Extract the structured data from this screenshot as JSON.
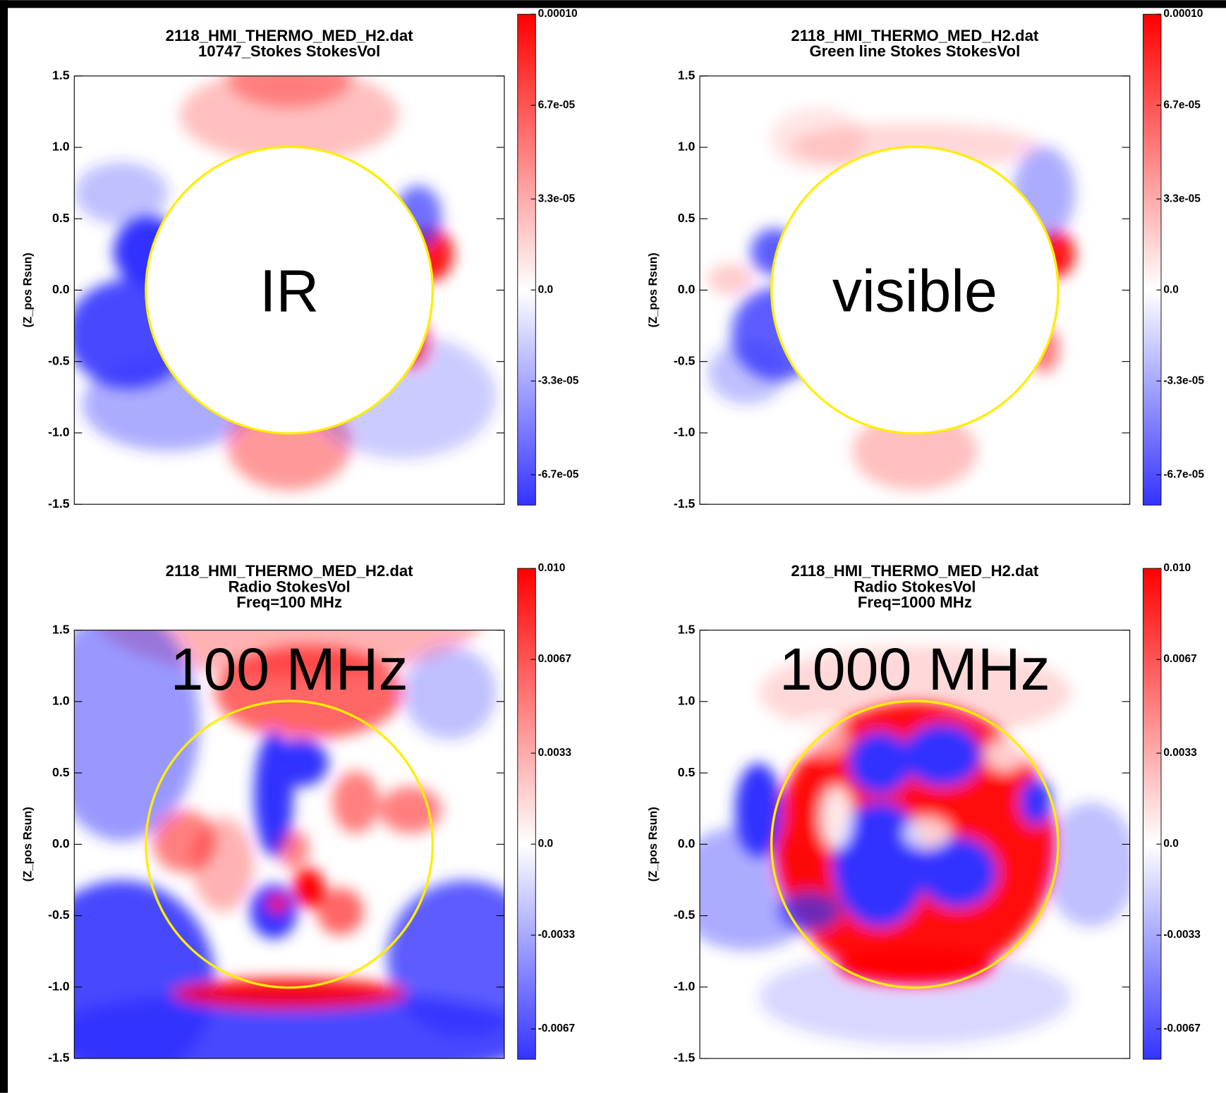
{
  "chart_data": [
    {
      "type": "heatmap",
      "title": [
        "2118_HMI_THERMO_MED_H2.dat",
        "10747_Stokes StokesVol"
      ],
      "ylabel": "(Z_pos Rsun)",
      "annotation": "IR",
      "xlim": [
        -1.5,
        1.5
      ],
      "ylim": [
        -1.5,
        1.5
      ],
      "yticks": [
        1.5,
        {
          "value": 1,
          "label": "1.0"
        },
        0.5,
        {
          "value": 0,
          "label": "0.0"
        },
        -0.5,
        {
          "value": -1,
          "label": "-1.0"
        },
        -1.5
      ],
      "colormap": [
        "#3333ff",
        "#ffffff",
        "#ff0000"
      ],
      "clim": [
        -7.8e-05,
        0.0001
      ],
      "cticks": [
        {
          "value": 0.0001,
          "label": "0.00010"
        },
        {
          "value": 6.7e-05,
          "label": "6.7e-05"
        },
        {
          "value": 3.3e-05,
          "label": "3.3e-05"
        },
        {
          "value": 0,
          "label": "0.0"
        },
        {
          "value": -3.3e-05,
          "label": "-3.3e-05"
        },
        {
          "value": -6.7e-05,
          "label": "-6.7e-05"
        }
      ]
    },
    {
      "type": "heatmap",
      "title": [
        "2118_HMI_THERMO_MED_H2.dat",
        "Green line Stokes StokesVol"
      ],
      "ylabel": "(Z_pos Rsun)",
      "annotation": "visible",
      "xlim": [
        -1.5,
        1.5
      ],
      "ylim": [
        -1.5,
        1.5
      ],
      "yticks": [
        1.5,
        {
          "value": 1,
          "label": "1.0"
        },
        0.5,
        {
          "value": 0,
          "label": "0.0"
        },
        -0.5,
        {
          "value": -1,
          "label": "-1.0"
        },
        -1.5
      ],
      "colormap": [
        "#3333ff",
        "#ffffff",
        "#ff0000"
      ],
      "clim": [
        -7.8e-05,
        0.0001
      ],
      "cticks": [
        {
          "value": 0.0001,
          "label": "0.00010"
        },
        {
          "value": 6.7e-05,
          "label": "6.7e-05"
        },
        {
          "value": 3.3e-05,
          "label": "3.3e-05"
        },
        {
          "value": 0,
          "label": "0.0"
        },
        {
          "value": -3.3e-05,
          "label": "-3.3e-05"
        },
        {
          "value": -6.7e-05,
          "label": "-6.7e-05"
        }
      ]
    },
    {
      "type": "heatmap",
      "title": [
        "2118_HMI_THERMO_MED_H2.dat",
        "Radio StokesVol",
        "Freq=100 MHz"
      ],
      "ylabel": "(Z_pos Rsun)",
      "annotation": "100 MHz",
      "xlim": [
        -1.5,
        1.5
      ],
      "ylim": [
        -1.5,
        1.5
      ],
      "yticks": [
        1.5,
        {
          "value": 1,
          "label": "1.0"
        },
        0.5,
        {
          "value": 0,
          "label": "0.0"
        },
        -0.5,
        {
          "value": -1,
          "label": "-1.0"
        },
        -1.5
      ],
      "colormap": [
        "#3333ff",
        "#ffffff",
        "#ff0000"
      ],
      "clim": [
        -0.0078,
        0.01
      ],
      "cticks": [
        {
          "value": 0.01,
          "label": "0.010"
        },
        0.0067,
        0.0033,
        {
          "value": 0,
          "label": "0.0"
        },
        -0.0033,
        -0.0067
      ]
    },
    {
      "type": "heatmap",
      "title": [
        "2118_HMI_THERMO_MED_H2.dat",
        "Radio StokesVol",
        "Freq=1000 MHz"
      ],
      "ylabel": "(Z_pos Rsun)",
      "annotation": "1000 MHz",
      "xlim": [
        -1.5,
        1.5
      ],
      "ylim": [
        -1.5,
        1.5
      ],
      "yticks": [
        1.5,
        {
          "value": 1,
          "label": "1.0"
        },
        0.5,
        {
          "value": 0,
          "label": "0.0"
        },
        -0.5,
        {
          "value": -1,
          "label": "-1.0"
        },
        -1.5
      ],
      "colormap": [
        "#3333ff",
        "#ffffff",
        "#ff0000"
      ],
      "clim": [
        -0.0078,
        0.01
      ],
      "cticks": [
        {
          "value": 0.01,
          "label": "0.010"
        },
        0.0067,
        0.0033,
        {
          "value": 0,
          "label": "0.0"
        },
        -0.0033,
        -0.0067
      ]
    }
  ]
}
